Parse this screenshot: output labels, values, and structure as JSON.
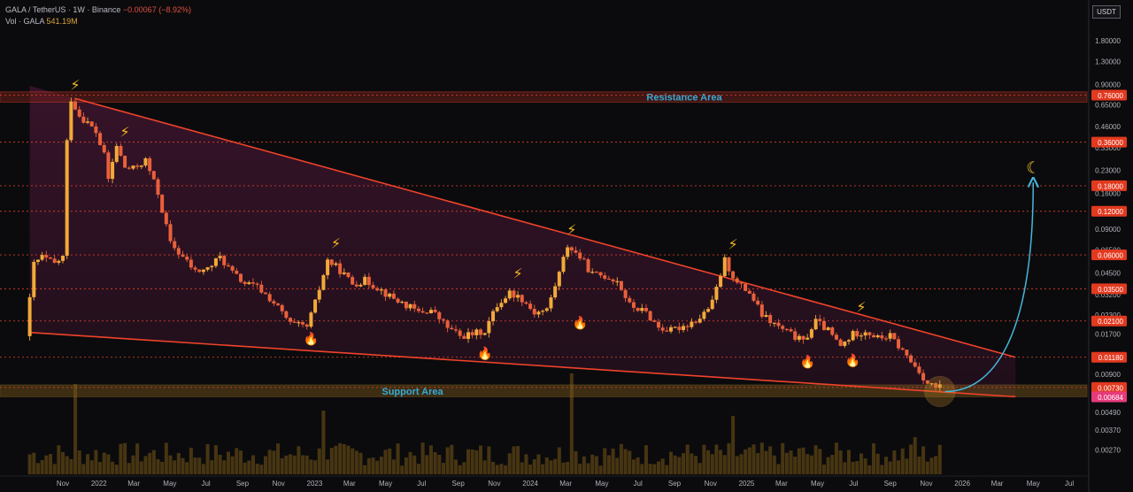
{
  "header": {
    "symbol_line": "GALA / TetherUS · 1W · Binance",
    "change": "−0.00067 (−8.92%)",
    "vol_label": "Vol · GALA",
    "vol_value": "541.19M"
  },
  "currency_label": "USDT",
  "colors": {
    "background": "#0b0b0d",
    "candle": "#e9603b",
    "candle_body_up": "#f2a93a",
    "trendline": "#f0432a",
    "zone_fill": "#5a1a40",
    "support_band": "#7a5a1c",
    "resistance_band": "#6b1f1a",
    "arrow": "#46b7dc",
    "level_tag": "#e2391f",
    "price_tag": "#e73a7c",
    "annotation_text": "#35a9d6"
  },
  "chart_data": {
    "type": "candlestick",
    "title": "GALA / TetherUS · 1W · Binance",
    "y_scale": "log",
    "ylim": [
      0.0023,
      2.6
    ],
    "y_ticks": [
      "1.80000",
      "1.30000",
      "0.90000",
      "0.65000",
      "0.46000",
      "0.33000",
      "0.23000",
      "0.16000",
      "0.12000",
      "0.09000",
      "0.06500",
      "0.04500",
      "0.03200",
      "0.02300",
      "0.01700",
      "0.01200",
      "0.00900",
      "0.00650",
      "0.00490",
      "0.00370",
      "0.00270"
    ],
    "y_tick_values": [
      1.8,
      1.3,
      0.9,
      0.65,
      0.46,
      0.33,
      0.23,
      0.16,
      0.12,
      0.09,
      0.065,
      0.045,
      0.032,
      0.023,
      0.017,
      0.012,
      0.009,
      0.0065,
      0.0049,
      0.0037,
      0.0027
    ],
    "x_ticks": [
      "Nov",
      "2022",
      "Mar",
      "May",
      "Jul",
      "Sep",
      "Nov",
      "2023",
      "Mar",
      "May",
      "Jul",
      "Sep",
      "Nov",
      "2024",
      "Mar",
      "May",
      "Jul",
      "Sep",
      "Nov",
      "2025",
      "Mar",
      "May",
      "Jul",
      "Sep",
      "Nov",
      "2026",
      "Mar",
      "May",
      "Jul"
    ],
    "x_tick_dates": [
      "2021-11-01",
      "2022-01-01",
      "2022-03-01",
      "2022-05-01",
      "2022-07-01",
      "2022-09-01",
      "2022-11-01",
      "2023-01-01",
      "2023-03-01",
      "2023-05-01",
      "2023-07-01",
      "2023-09-01",
      "2023-11-01",
      "2024-01-01",
      "2024-03-01",
      "2024-05-01",
      "2024-07-01",
      "2024-09-01",
      "2024-11-01",
      "2025-01-01",
      "2025-03-01",
      "2025-05-01",
      "2025-07-01",
      "2025-09-01",
      "2025-11-01",
      "2026-01-01",
      "2026-03-01",
      "2026-05-01",
      "2026-07-01"
    ],
    "price_path": [
      {
        "date": "2021-09-06",
        "price": 0.0165
      },
      {
        "date": "2021-09-20",
        "price": 0.052
      },
      {
        "date": "2021-10-04",
        "price": 0.058
      },
      {
        "date": "2021-10-25",
        "price": 0.052
      },
      {
        "date": "2021-11-08",
        "price": 0.058
      },
      {
        "date": "2021-11-15",
        "price": 0.36
      },
      {
        "date": "2021-11-22",
        "price": 0.72
      },
      {
        "date": "2021-12-06",
        "price": 0.55
      },
      {
        "date": "2021-12-20",
        "price": 0.49
      },
      {
        "date": "2022-01-03",
        "price": 0.42
      },
      {
        "date": "2022-01-17",
        "price": 0.29
      },
      {
        "date": "2022-01-24",
        "price": 0.2
      },
      {
        "date": "2022-02-07",
        "price": 0.34
      },
      {
        "date": "2022-02-21",
        "price": 0.24
      },
      {
        "date": "2022-03-07",
        "price": 0.235
      },
      {
        "date": "2022-03-28",
        "price": 0.27
      },
      {
        "date": "2022-04-18",
        "price": 0.16
      },
      {
        "date": "2022-05-09",
        "price": 0.072
      },
      {
        "date": "2022-05-30",
        "price": 0.058
      },
      {
        "date": "2022-06-20",
        "price": 0.046
      },
      {
        "date": "2022-07-11",
        "price": 0.048
      },
      {
        "date": "2022-08-01",
        "price": 0.058
      },
      {
        "date": "2022-08-22",
        "price": 0.045
      },
      {
        "date": "2022-09-12",
        "price": 0.038
      },
      {
        "date": "2022-10-03",
        "price": 0.036
      },
      {
        "date": "2022-10-24",
        "price": 0.03
      },
      {
        "date": "2022-11-07",
        "price": 0.026
      },
      {
        "date": "2022-11-28",
        "price": 0.02
      },
      {
        "date": "2022-12-26",
        "price": 0.019
      },
      {
        "date": "2023-01-09",
        "price": 0.028
      },
      {
        "date": "2023-01-30",
        "price": 0.055
      },
      {
        "date": "2023-02-20",
        "price": 0.047
      },
      {
        "date": "2023-03-13",
        "price": 0.038
      },
      {
        "date": "2023-04-03",
        "price": 0.04
      },
      {
        "date": "2023-04-24",
        "price": 0.036
      },
      {
        "date": "2023-05-15",
        "price": 0.031
      },
      {
        "date": "2023-06-12",
        "price": 0.027
      },
      {
        "date": "2023-07-03",
        "price": 0.024
      },
      {
        "date": "2023-07-24",
        "price": 0.025
      },
      {
        "date": "2023-08-21",
        "price": 0.019
      },
      {
        "date": "2023-09-11",
        "price": 0.0165
      },
      {
        "date": "2023-10-02",
        "price": 0.017
      },
      {
        "date": "2023-10-23",
        "price": 0.018
      },
      {
        "date": "2023-11-13",
        "price": 0.027
      },
      {
        "date": "2023-12-04",
        "price": 0.033
      },
      {
        "date": "2023-12-25",
        "price": 0.03
      },
      {
        "date": "2024-01-15",
        "price": 0.024
      },
      {
        "date": "2024-02-05",
        "price": 0.025
      },
      {
        "date": "2024-02-26",
        "price": 0.045
      },
      {
        "date": "2024-03-11",
        "price": 0.07
      },
      {
        "date": "2024-04-01",
        "price": 0.058
      },
      {
        "date": "2024-04-22",
        "price": 0.044
      },
      {
        "date": "2024-05-13",
        "price": 0.043
      },
      {
        "date": "2024-06-03",
        "price": 0.04
      },
      {
        "date": "2024-06-24",
        "price": 0.027
      },
      {
        "date": "2024-07-22",
        "price": 0.024
      },
      {
        "date": "2024-08-12",
        "price": 0.019
      },
      {
        "date": "2024-09-02",
        "price": 0.018
      },
      {
        "date": "2024-09-30",
        "price": 0.02
      },
      {
        "date": "2024-10-21",
        "price": 0.022
      },
      {
        "date": "2024-11-11",
        "price": 0.028
      },
      {
        "date": "2024-12-02",
        "price": 0.055
      },
      {
        "date": "2024-12-23",
        "price": 0.038
      },
      {
        "date": "2025-01-13",
        "price": 0.033
      },
      {
        "date": "2025-02-03",
        "price": 0.023
      },
      {
        "date": "2025-03-03",
        "price": 0.019
      },
      {
        "date": "2025-03-24",
        "price": 0.017
      },
      {
        "date": "2025-04-14",
        "price": 0.015
      },
      {
        "date": "2025-05-05",
        "price": 0.021
      },
      {
        "date": "2025-05-26",
        "price": 0.018
      },
      {
        "date": "2025-06-16",
        "price": 0.014
      },
      {
        "date": "2025-07-07",
        "price": 0.017
      },
      {
        "date": "2025-07-28",
        "price": 0.018
      },
      {
        "date": "2025-08-18",
        "price": 0.016
      },
      {
        "date": "2025-09-08",
        "price": 0.0165
      },
      {
        "date": "2025-09-29",
        "price": 0.013
      },
      {
        "date": "2025-10-13",
        "price": 0.011
      },
      {
        "date": "2025-10-27",
        "price": 0.0095
      },
      {
        "date": "2025-11-10",
        "price": 0.0078
      },
      {
        "date": "2025-11-24",
        "price": 0.0073
      }
    ],
    "current_price": 0.00684,
    "current_price_label": "0.00684",
    "levels": [
      {
        "price": 0.76,
        "label": "0.76000"
      },
      {
        "price": 0.36,
        "label": "0.36000"
      },
      {
        "price": 0.18,
        "label": "0.18000"
      },
      {
        "price": 0.12,
        "label": "0.12000"
      },
      {
        "price": 0.06,
        "label": "0.06000"
      },
      {
        "price": 0.035,
        "label": "0.03500"
      },
      {
        "price": 0.021,
        "label": "0.02100"
      },
      {
        "price": 0.0118,
        "label": "0.01180"
      },
      {
        "price": 0.0073,
        "label": "0.00730"
      }
    ],
    "resistance_area": {
      "label": "Resistance Area",
      "low": 0.68,
      "high": 0.8
    },
    "support_area": {
      "label": "Support Area",
      "low": 0.00684,
      "high": 0.0073
    },
    "wedge": {
      "upper_start": {
        "date": "2021-11-22",
        "price": 0.72
      },
      "upper_end": {
        "date": "2026-04-01",
        "price": 0.0118
      },
      "lower_start": {
        "date": "2021-09-06",
        "price": 0.0175
      },
      "lower_end": {
        "date": "2026-04-01",
        "price": 0.0063
      }
    },
    "projection_target": {
      "date": "2026-05-01",
      "price": 0.19
    },
    "annotations": {
      "lightning": [
        {
          "date": "2021-11-22",
          "price": 0.72
        },
        {
          "date": "2022-02-14",
          "price": 0.34
        },
        {
          "date": "2023-02-06",
          "price": 0.058
        },
        {
          "date": "2023-12-11",
          "price": 0.036
        },
        {
          "date": "2024-03-11",
          "price": 0.072
        },
        {
          "date": "2024-12-09",
          "price": 0.057
        },
        {
          "date": "2025-07-14",
          "price": 0.021
        }
      ],
      "fire": [
        {
          "date": "2022-12-26",
          "price": 0.017
        },
        {
          "date": "2023-10-16",
          "price": 0.0135
        },
        {
          "date": "2024-03-25",
          "price": 0.022
        },
        {
          "date": "2025-04-14",
          "price": 0.0118
        },
        {
          "date": "2025-06-30",
          "price": 0.0121
        }
      ],
      "moon": {
        "date": "2026-05-01",
        "price": 0.22
      }
    },
    "volume_spikes": [
      {
        "date": "2021-11-22",
        "value": 0.85
      },
      {
        "date": "2023-01-16",
        "value": 0.6
      },
      {
        "date": "2024-03-11",
        "value": 0.95
      },
      {
        "date": "2024-12-09",
        "value": 0.55
      },
      {
        "date": "2025-10-13",
        "value": 0.35
      }
    ],
    "grid": false
  }
}
